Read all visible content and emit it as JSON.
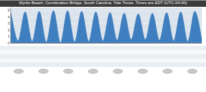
{
  "chart_data": {
    "type": "area",
    "title": "Myrtle Beach, Combination Bridge, South Carolina, Tide Times. Times are EDT (UTC-04:00)",
    "x": [
      0,
      6.2,
      12.4,
      18.6,
      24.8,
      31.0,
      37.3,
      43.5,
      49.7,
      55.9,
      62.1,
      68.3,
      74.5,
      80.7,
      87.0,
      93.2,
      99.4,
      105.6,
      111.8,
      118.0,
      124.2,
      130.4,
      136.7,
      142.9,
      149.1,
      155.3,
      161.5,
      167.7
    ],
    "values": [
      4.6,
      0.3,
      4.8,
      0.2,
      4.9,
      0.1,
      5.0,
      0.0,
      5.0,
      0.1,
      4.9,
      0.2,
      4.8,
      0.3,
      4.7,
      0.4,
      4.6,
      0.5,
      4.5,
      0.5,
      4.6,
      0.4,
      4.7,
      0.3,
      4.8,
      0.2,
      4.9,
      0.2
    ],
    "color": "#3f7fbf",
    "xlim": [
      0,
      167.7
    ],
    "ylim": [
      0,
      5.5
    ],
    "yticks": [
      0,
      1,
      2,
      3,
      4,
      5
    ],
    "grid": true,
    "tick_labels": "y"
  }
}
